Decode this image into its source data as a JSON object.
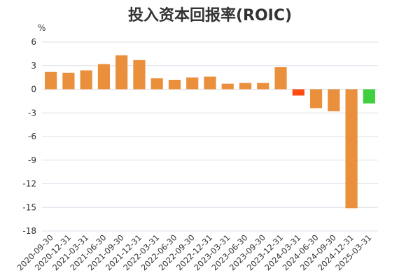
{
  "chart_data": {
    "type": "bar",
    "title": "投入资本回报率(ROIC)",
    "ylabel": "%",
    "xlabel": "",
    "ylim": [
      -18,
      6
    ],
    "yticks": [
      6,
      3,
      0,
      -3,
      -6,
      -9,
      -12,
      -15,
      -18
    ],
    "grid": true,
    "categories": [
      "2020-09-30",
      "2020-12-31",
      "2021-03-31",
      "2021-06-30",
      "2021-09-30",
      "2021-12-31",
      "2022-03-31",
      "2022-06-30",
      "2022-09-30",
      "2022-12-31",
      "2023-03-31",
      "2023-06-30",
      "2023-09-30",
      "2023-12-31",
      "2024-03-31",
      "2024-06-30",
      "2024-09-30",
      "2024-12-31",
      "2025-03-31"
    ],
    "values": [
      2.2,
      2.1,
      2.4,
      3.2,
      4.3,
      3.7,
      1.4,
      1.2,
      1.5,
      1.6,
      0.7,
      0.8,
      0.8,
      2.8,
      -0.8,
      -2.4,
      -2.8,
      -15.1,
      -1.8
    ],
    "colors": [
      "#ea8f3c",
      "#ea8f3c",
      "#ea8f3c",
      "#ea8f3c",
      "#ea8f3c",
      "#ea8f3c",
      "#ea8f3c",
      "#ea8f3c",
      "#ea8f3c",
      "#ea8f3c",
      "#ea8f3c",
      "#ea8f3c",
      "#ea8f3c",
      "#ea8f3c",
      "#ff4b12",
      "#ea8f3c",
      "#ea8f3c",
      "#ea8f3c",
      "#3fcf3f"
    ]
  }
}
